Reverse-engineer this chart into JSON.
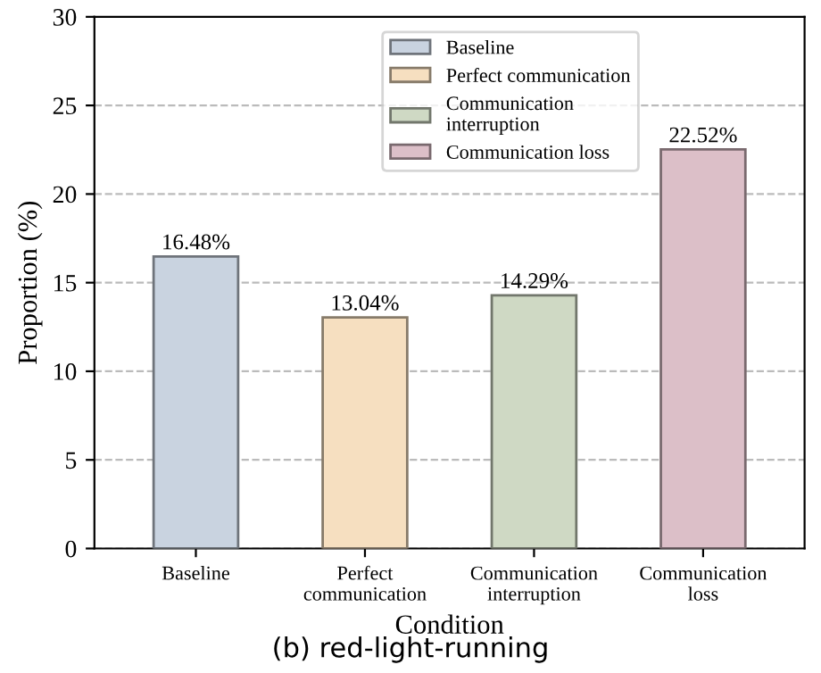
{
  "chart_data": {
    "type": "bar",
    "title": "(b) red-light-running",
    "xlabel": "Condition",
    "ylabel": "Proportion (%)",
    "categories": [
      "Baseline",
      "Perfect\ncommunication",
      "Communication\ninterruption",
      "Communication\nloss"
    ],
    "series": [
      {
        "name": "Baseline",
        "color": "#c9d3e0",
        "values": [
          16.48,
          null,
          null,
          null
        ]
      },
      {
        "name": "Perfect communication",
        "color": "#f6dfc0",
        "values": [
          null,
          13.04,
          null,
          null
        ]
      },
      {
        "name": "Communication\ninterruption",
        "color": "#cfd9c4",
        "values": [
          null,
          null,
          14.29,
          null
        ]
      },
      {
        "name": "Communication loss",
        "color": "#dcbfc8",
        "values": [
          null,
          null,
          null,
          22.52
        ]
      }
    ],
    "value_labels": [
      "16.48%",
      "13.04%",
      "14.29%",
      "22.52%"
    ],
    "ylim": [
      0,
      30
    ],
    "yticks": [
      0,
      5,
      10,
      15,
      20,
      25,
      30
    ],
    "grid": "y",
    "legend": "top right"
  }
}
